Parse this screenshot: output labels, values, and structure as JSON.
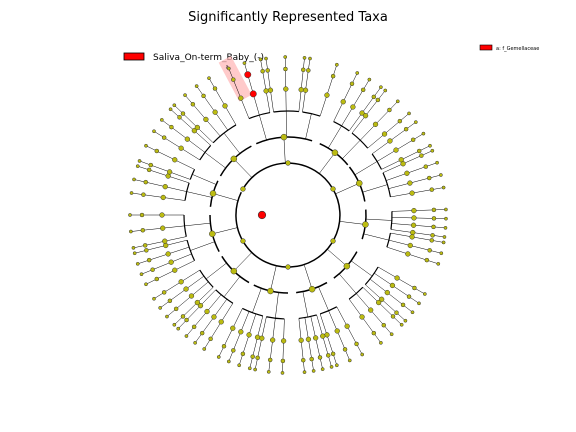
{
  "figure": {
    "title": "Significantly Represented Taxa"
  },
  "legend": {
    "class_label": "Saliva_On-term_Baby_(-)",
    "class_color": "#ff0000",
    "clade_key": "a: f_Gemellaceae"
  },
  "highlight": {
    "letter": "a",
    "shade_color": "#ffb3b3"
  },
  "colors": {
    "node_default": "#bbbb11",
    "node_significant": "#ff0000",
    "edge": "#000000"
  }
}
